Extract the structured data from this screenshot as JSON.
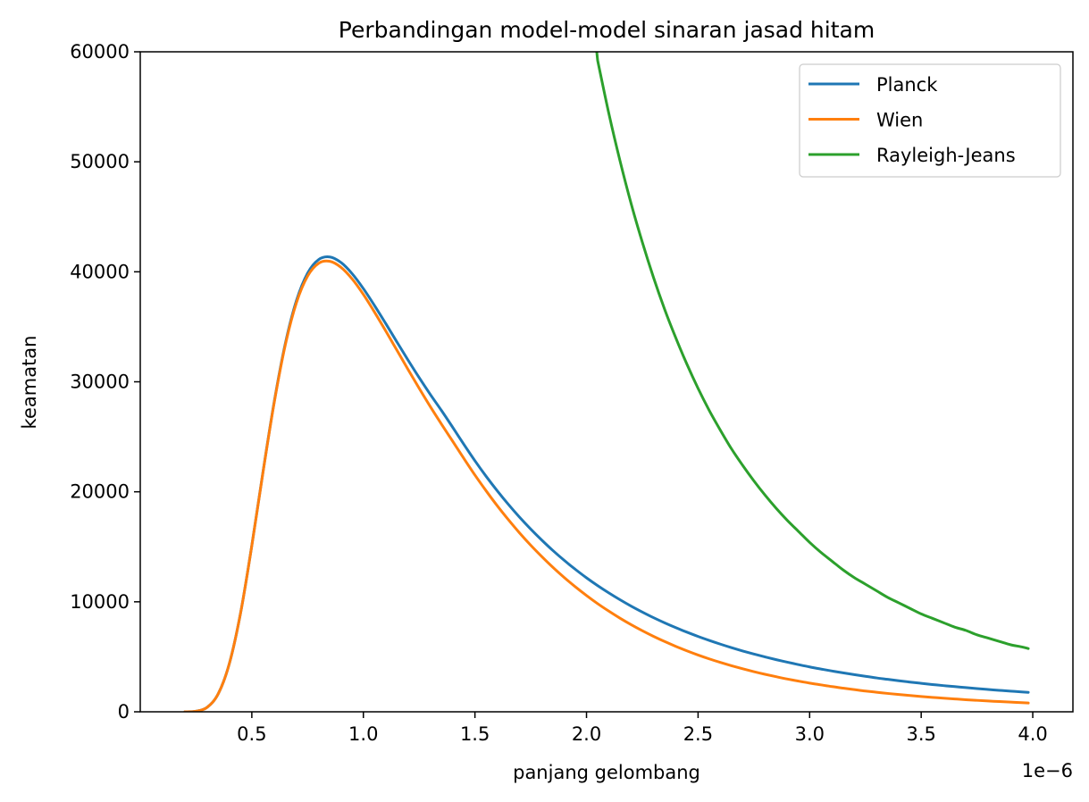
{
  "chart_data": {
    "type": "line",
    "title": "Perbandingan model-model sinaran jasad hitam",
    "xlabel": "panjang gelombang",
    "ylabel": "keamatan",
    "x_offset_label": "1e−6",
    "xlim": [
      0.0,
      4.18
    ],
    "ylim": [
      0,
      60000
    ],
    "xticks": [
      0.5,
      1.0,
      1.5,
      2.0,
      2.5,
      3.0,
      3.5,
      4.0
    ],
    "xtick_labels": [
      "0.5",
      "1.0",
      "1.5",
      "2.0",
      "2.5",
      "3.0",
      "3.5",
      "4.0"
    ],
    "yticks": [
      0,
      10000,
      20000,
      30000,
      40000,
      50000,
      60000
    ],
    "ytick_labels": [
      "0",
      "10000",
      "20000",
      "30000",
      "40000",
      "50000",
      "60000"
    ],
    "legend_position": "top-right",
    "grid": false,
    "x": [
      0.2,
      0.25,
      0.3,
      0.35,
      0.4,
      0.45,
      0.5,
      0.55,
      0.6,
      0.65,
      0.7,
      0.75,
      0.8,
      0.85,
      0.9,
      0.95,
      1.0,
      1.05,
      1.1,
      1.15,
      1.2,
      1.25,
      1.3,
      1.35,
      1.4,
      1.45,
      1.5,
      1.55,
      1.6,
      1.65,
      1.7,
      1.75,
      1.8,
      1.85,
      1.9,
      1.95,
      2.0,
      2.05,
      2.1,
      2.15,
      2.2,
      2.25,
      2.3,
      2.35,
      2.4,
      2.45,
      2.5,
      2.55,
      2.6,
      2.65,
      2.7,
      2.75,
      2.8,
      2.85,
      2.9,
      2.95,
      3.0,
      3.05,
      3.1,
      3.15,
      3.2,
      3.25,
      3.3,
      3.35,
      3.4,
      3.45,
      3.5,
      3.55,
      3.6,
      3.65,
      3.7,
      3.75,
      3.8,
      3.85,
      3.9,
      3.95,
      3.98
    ],
    "series": [
      {
        "name": "Planck",
        "color": "#1f77b4",
        "values": [
          2,
          54,
          414,
          1656,
          4435,
          9025,
          15120,
          21800,
          28140,
          33460,
          37380,
          39880,
          41120,
          41350,
          40840,
          39820,
          38470,
          36930,
          35300,
          33630,
          31980,
          30380,
          28850,
          27390,
          25870,
          24320,
          22820,
          21410,
          20090,
          18850,
          17690,
          16610,
          15600,
          14650,
          13770,
          12950,
          12180,
          11470,
          10810,
          10190,
          9610,
          9070,
          8560,
          8090,
          7650,
          7240,
          6850,
          6490,
          6150,
          5830,
          5530,
          5250,
          4990,
          4740,
          4510,
          4290,
          4080,
          3890,
          3710,
          3540,
          3380,
          3230,
          3080,
          2950,
          2820,
          2700,
          2590,
          2480,
          2380,
          2290,
          2200,
          2110,
          2030,
          1950,
          1880,
          1810,
          1770
        ]
      },
      {
        "name": "Wien",
        "color": "#ff7f0e",
        "values": [
          2,
          54,
          414,
          1656,
          4435,
          9020,
          15100,
          21760,
          28070,
          33340,
          37190,
          39610,
          40780,
          40950,
          40400,
          39340,
          37940,
          36330,
          34630,
          32880,
          31130,
          29410,
          27740,
          26150,
          24600,
          23040,
          21520,
          20090,
          18730,
          17460,
          16260,
          15140,
          14100,
          13120,
          12210,
          11360,
          10570,
          9830,
          9150,
          8510,
          7920,
          7370,
          6860,
          6390,
          5950,
          5540,
          5160,
          4810,
          4490,
          4190,
          3910,
          3650,
          3410,
          3190,
          2980,
          2790,
          2610,
          2450,
          2290,
          2150,
          2020,
          1890,
          1780,
          1670,
          1570,
          1480,
          1390,
          1310,
          1240,
          1170,
          1100,
          1040,
          980,
          930,
          880,
          830,
          800
        ]
      },
      {
        "name": "Rayleigh-Jeans",
        "color": "#2ca02c",
        "values": [
          null,
          null,
          null,
          null,
          null,
          null,
          null,
          null,
          null,
          null,
          null,
          null,
          null,
          null,
          null,
          null,
          null,
          null,
          null,
          null,
          null,
          null,
          null,
          null,
          null,
          null,
          null,
          null,
          null,
          null,
          null,
          null,
          null,
          null,
          null,
          null,
          null,
          59200,
          54400,
          50100,
          46200,
          42700,
          39500,
          36600,
          34000,
          31600,
          29400,
          27400,
          25600,
          23900,
          22400,
          21000,
          19700,
          18500,
          17400,
          16400,
          15400,
          14500,
          13700,
          12900,
          12200,
          11600,
          11000,
          10400,
          9900,
          9400,
          8900,
          8500,
          8100,
          7700,
          7400,
          7000,
          6700,
          6400,
          6100,
          5900,
          5750
        ]
      }
    ]
  }
}
